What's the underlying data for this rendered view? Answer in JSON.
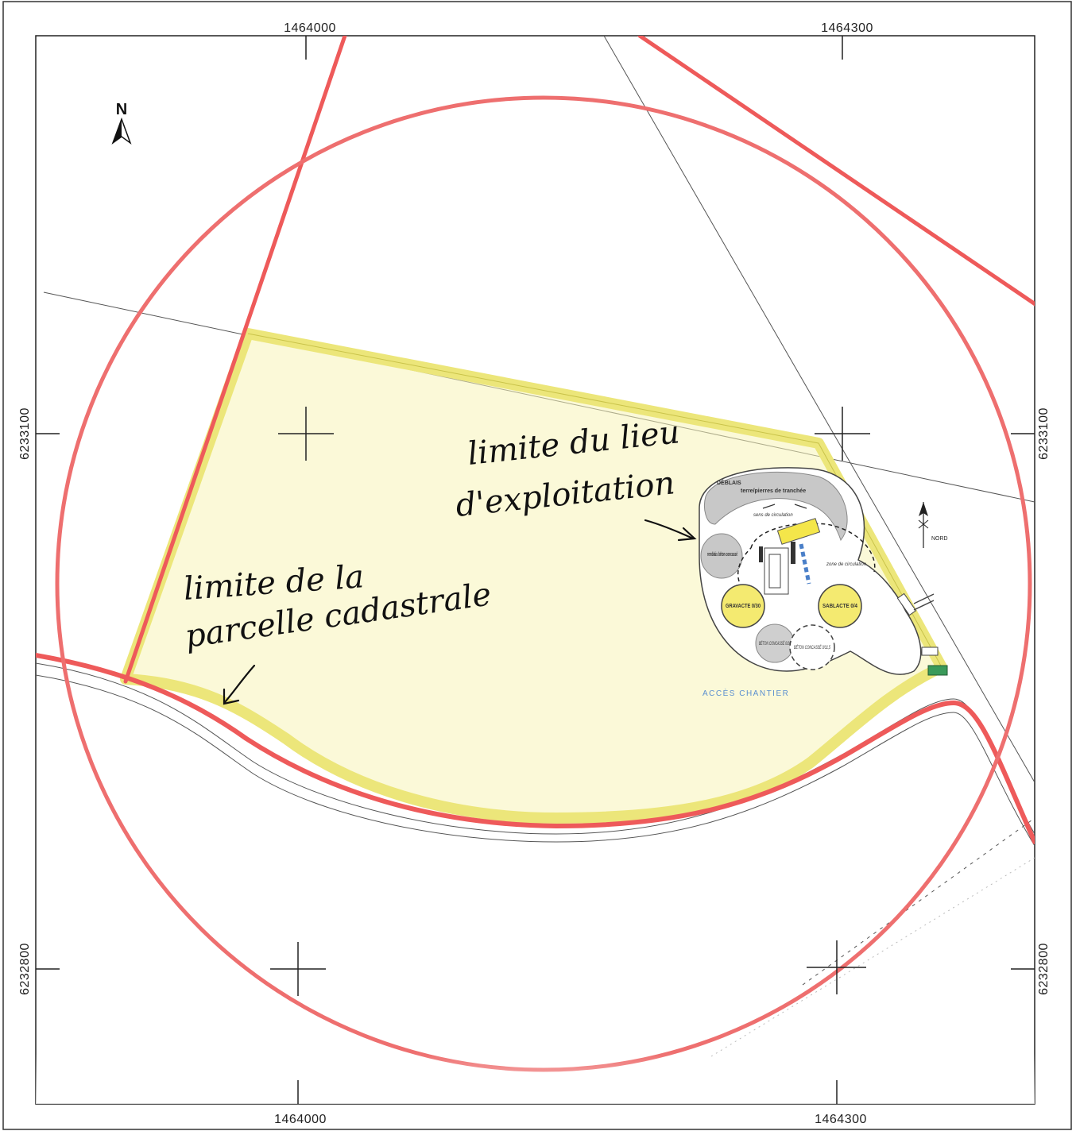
{
  "map": {
    "grid": {
      "x_top_left": "1464000",
      "x_top_right": "1464300",
      "x_bottom_left": "1464000",
      "x_bottom_right": "1464300",
      "y_left_upper": "6233100",
      "y_left_lower": "6232800",
      "y_right_upper": "6233100",
      "y_right_lower": "6232800"
    },
    "north_arrow": {
      "label": "N",
      "icon": "north-arrow-icon"
    },
    "annotations": {
      "site_limit": {
        "line1": "limite du lieu",
        "line2": "d'exploitation"
      },
      "parcel_limit": {
        "line1": "limite de la",
        "line2": "parcelle cadastrale"
      }
    },
    "site_plan": {
      "deblais_title": "DÉBLAIS",
      "deblais_sub": "terre/pierres de tranchée",
      "sens_circulation": "sens de circulation",
      "zone_circulation": "zone de circulation",
      "pile_left": "remblais béton concassé",
      "gravacte": "GRAVACTE 0/30",
      "sablacte": "SABLACTE 0/4",
      "beton_left": "BÉTON CONCASSÉ 0/20",
      "beton_right": "BÉTON CONCASSÉ 0/31,5",
      "nord_label": "NORD",
      "blue_note": "ACCÈS CHANTIER"
    },
    "colors": {
      "buffer_circle": "#ee6f6f",
      "roads": "#ee5a5a",
      "parcel_fill": "#f5f3a6",
      "parcel_edge": "#e8e37a",
      "thin_lines": "#555555",
      "pile_gray": "#c8c8c8",
      "pile_yellow": "#f4ea70",
      "blue": "#4a7fc8"
    }
  }
}
